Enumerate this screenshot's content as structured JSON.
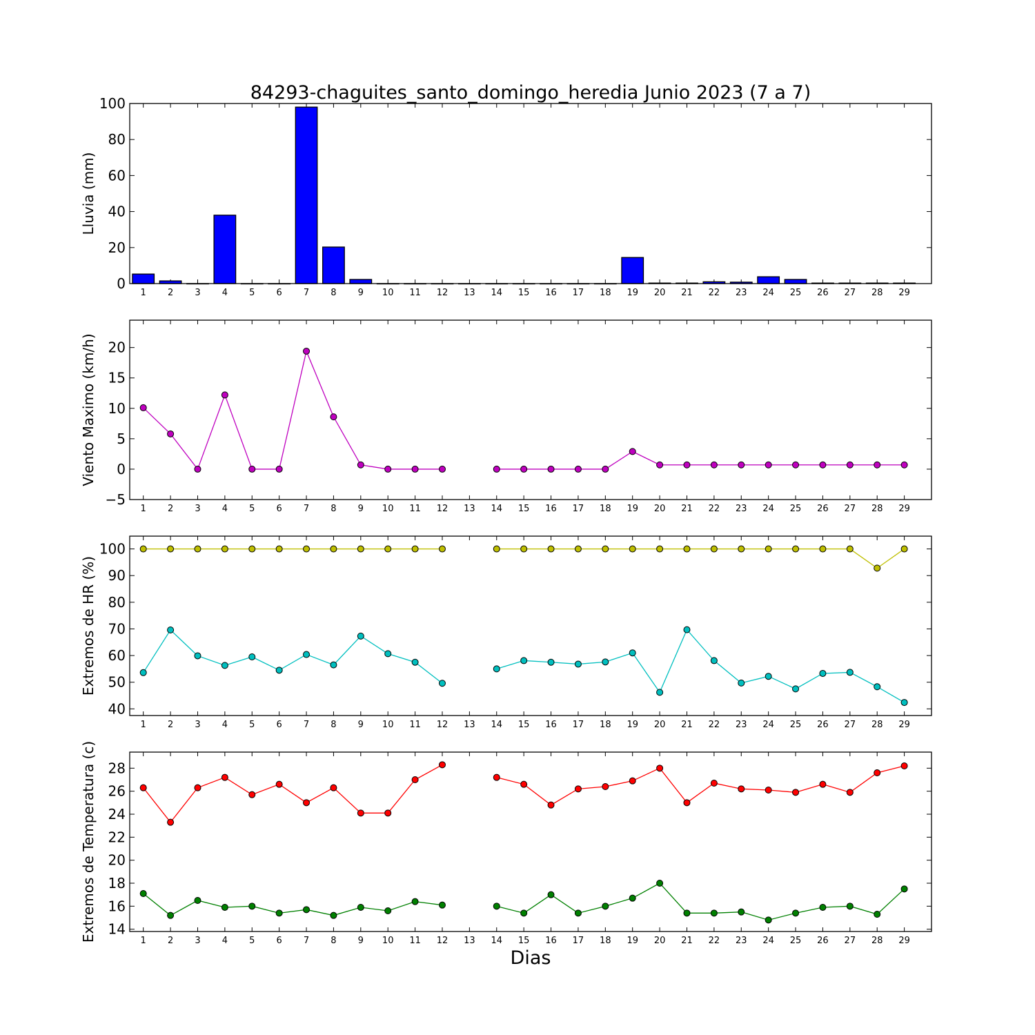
{
  "title": "84293-chaguites_santo_domingo_heredia Junio 2023  (7 a 7)",
  "xlabel": "Dias",
  "chart_data": [
    {
      "type": "bar",
      "ylabel": "Lluvia (mm)",
      "categories": [
        "1",
        "2",
        "3",
        "4",
        "5",
        "6",
        "7",
        "8",
        "9",
        "10",
        "11",
        "12",
        "13",
        "14",
        "15",
        "16",
        "17",
        "18",
        "19",
        "20",
        "21",
        "22",
        "23",
        "24",
        "25",
        "26",
        "27",
        "28",
        "29"
      ],
      "series": [
        {
          "color": "#0000ff",
          "values": [
            5.3,
            1.5,
            0,
            38,
            0,
            0,
            98,
            20.3,
            2.3,
            0,
            0,
            0,
            0,
            0,
            0,
            0,
            0,
            0,
            14.5,
            0.3,
            0.3,
            1.0,
            0.8,
            3.8,
            2.3,
            0.3,
            0.3,
            0.3,
            0.3
          ]
        }
      ],
      "ylim": [
        0,
        100
      ],
      "yticks": [
        0,
        20,
        40,
        60,
        80,
        100
      ]
    },
    {
      "type": "line",
      "ylabel": "Viento Maximo (km/h)",
      "categories": [
        "1",
        "2",
        "3",
        "4",
        "5",
        "6",
        "7",
        "8",
        "9",
        "10",
        "11",
        "12",
        "13",
        "14",
        "15",
        "16",
        "17",
        "18",
        "19",
        "20",
        "21",
        "22",
        "23",
        "24",
        "25",
        "26",
        "27",
        "28",
        "29"
      ],
      "series": [
        {
          "color": "#bf00bf",
          "values": [
            10.1,
            5.8,
            0,
            12.2,
            0,
            0,
            19.4,
            8.6,
            0.7,
            0,
            0,
            0,
            null,
            0,
            0,
            0,
            0,
            0,
            2.9,
            0.7,
            0.7,
            0.7,
            0.7,
            0.7,
            0.7,
            0.7,
            0.7,
            0.7,
            0.7
          ]
        }
      ],
      "ylim": [
        -5,
        24.5
      ],
      "yticks": [
        -5,
        0,
        5,
        10,
        15,
        20
      ]
    },
    {
      "type": "line",
      "ylabel": "Extremos de HR (%)",
      "categories": [
        "1",
        "2",
        "3",
        "4",
        "5",
        "6",
        "7",
        "8",
        "9",
        "10",
        "11",
        "12",
        "13",
        "14",
        "15",
        "16",
        "17",
        "18",
        "19",
        "20",
        "21",
        "22",
        "23",
        "24",
        "25",
        "26",
        "27",
        "28",
        "29"
      ],
      "series": [
        {
          "color": "#bfbf00",
          "values": [
            100,
            100,
            100,
            100,
            100,
            100,
            100,
            100,
            100,
            100,
            100,
            100,
            null,
            100,
            100,
            100,
            100,
            100,
            100,
            100,
            100,
            100,
            100,
            100,
            100,
            100,
            100,
            92.8,
            100
          ]
        },
        {
          "color": "#00bfbf",
          "values": [
            53.6,
            69.6,
            59.9,
            56.3,
            59.5,
            54.5,
            60.4,
            56.5,
            67.3,
            60.7,
            57.5,
            49.6,
            null,
            55,
            58.1,
            57.5,
            56.8,
            57.6,
            61,
            46.2,
            69.7,
            58.1,
            49.7,
            52.2,
            47.5,
            53.3,
            53.7,
            48.3,
            42.4
          ]
        }
      ],
      "ylim": [
        37.5,
        104.8
      ],
      "yticks": [
        40,
        50,
        60,
        70,
        80,
        90,
        100
      ]
    },
    {
      "type": "line",
      "ylabel": "Extremos de Temperatura (c)",
      "categories": [
        "1",
        "2",
        "3",
        "4",
        "5",
        "6",
        "7",
        "8",
        "9",
        "10",
        "11",
        "12",
        "13",
        "14",
        "15",
        "16",
        "17",
        "18",
        "19",
        "20",
        "21",
        "22",
        "23",
        "24",
        "25",
        "26",
        "27",
        "28",
        "29"
      ],
      "series": [
        {
          "color": "#ff0000",
          "values": [
            26.3,
            23.3,
            26.3,
            27.2,
            25.7,
            26.6,
            25,
            26.3,
            24.1,
            24.1,
            27,
            28.3,
            null,
            27.2,
            26.6,
            24.8,
            26.2,
            26.4,
            26.9,
            28,
            25,
            26.7,
            26.2,
            26.1,
            25.9,
            26.6,
            25.9,
            27.6,
            28.2
          ]
        },
        {
          "color": "#008000",
          "values": [
            17.1,
            15.2,
            16.5,
            15.9,
            16,
            15.4,
            15.7,
            15.2,
            15.9,
            15.6,
            16.4,
            16.1,
            null,
            16,
            15.4,
            17,
            15.4,
            16,
            16.7,
            18,
            15.4,
            15.4,
            15.5,
            14.8,
            15.4,
            15.9,
            16,
            15.3,
            17.5
          ]
        }
      ],
      "ylim": [
        13.8,
        29.4
      ],
      "yticks": [
        14,
        16,
        18,
        20,
        22,
        24,
        26,
        28
      ]
    }
  ]
}
